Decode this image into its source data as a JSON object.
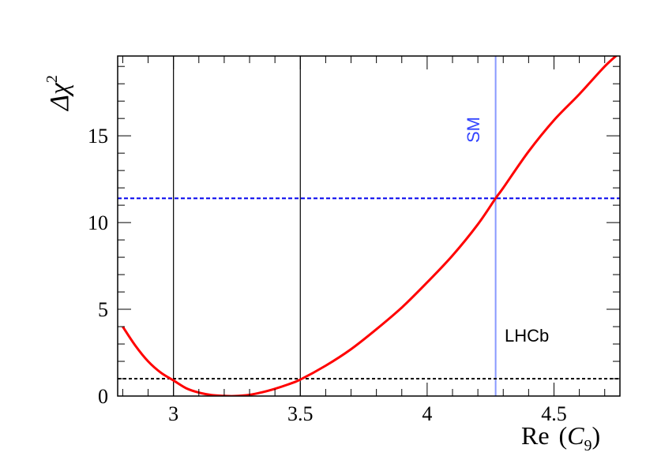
{
  "chart_data": {
    "type": "line",
    "title": "",
    "xlabel": {
      "main": "Re",
      "symbol": "C",
      "subscript": "9"
    },
    "ylabel": {
      "main": "Δχ",
      "superscript": "2"
    },
    "xlim": [
      2.78,
      4.76
    ],
    "ylim": [
      0,
      19.6
    ],
    "x_ticks": [
      3,
      3.5,
      4,
      4.5
    ],
    "x_tick_labels": [
      "3",
      "3.5",
      "4",
      "4.5"
    ],
    "y_ticks": [
      0,
      5,
      10,
      15
    ],
    "y_tick_labels": [
      "0",
      "5",
      "10",
      "15"
    ],
    "grid": false,
    "series": [
      {
        "name": "",
        "color": "#ff0000",
        "x": [
          2.8,
          2.85,
          2.9,
          2.95,
          3.0,
          3.05,
          3.1,
          3.15,
          3.2,
          3.24,
          3.3,
          3.35,
          3.4,
          3.45,
          3.5,
          3.6,
          3.7,
          3.8,
          3.9,
          4.0,
          4.1,
          4.2,
          4.27,
          4.3,
          4.4,
          4.5,
          4.6,
          4.7,
          4.76
        ],
        "y": [
          4.0,
          2.9,
          2.0,
          1.35,
          0.9,
          0.45,
          0.2,
          0.06,
          0.01,
          0.0,
          0.07,
          0.22,
          0.42,
          0.66,
          0.95,
          1.75,
          2.7,
          3.85,
          5.1,
          6.55,
          8.1,
          9.9,
          11.4,
          12.0,
          14.1,
          15.9,
          17.4,
          19.0,
          19.8
        ]
      }
    ],
    "reference_lines": {
      "vertical_black": [
        3.0,
        3.5
      ],
      "vertical_sm": {
        "x": 4.27,
        "label": "SM",
        "color": "#3344ff"
      },
      "horizontal_blue_dashed": {
        "y": 11.4,
        "color": "#0000ee"
      },
      "horizontal_black_dashed": {
        "y": 1.0,
        "color": "#000000"
      }
    },
    "annotations": [
      {
        "text": "LHCb"
      }
    ]
  }
}
